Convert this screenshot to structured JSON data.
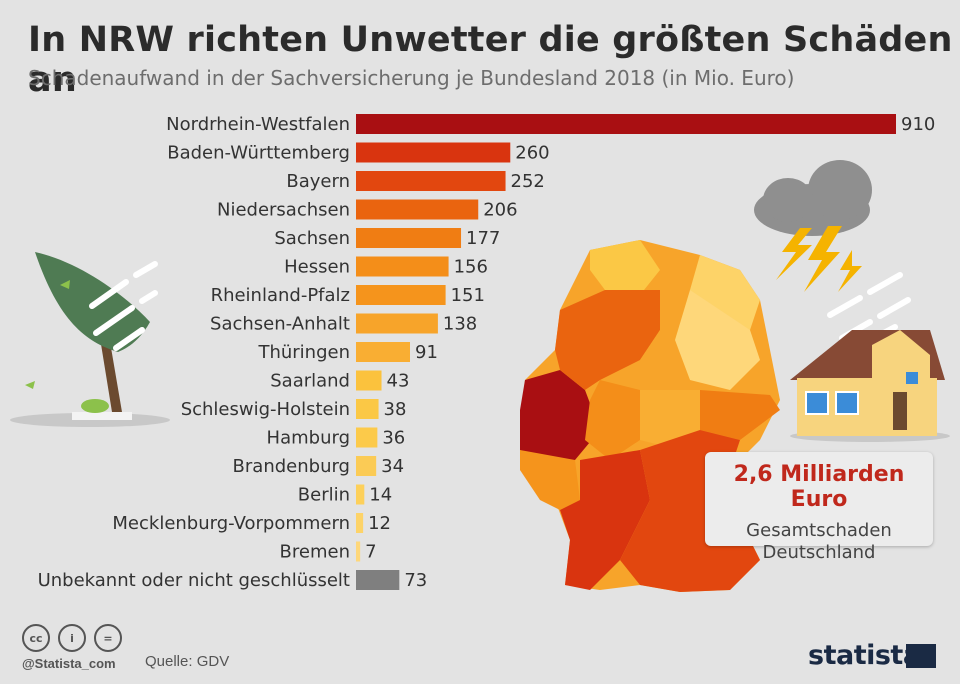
{
  "header": {
    "title": "In NRW richten Unwetter die größten Schäden an",
    "subtitle": "Schadenaufwand in der Sachversicherung je Bundesland 2018 (in Mio. Euro)"
  },
  "chart_data": {
    "type": "bar",
    "orientation": "horizontal",
    "title": "In NRW richten Unwetter die größten Schäden an",
    "subtitle": "Schadenaufwand in der Sachversicherung je Bundesland 2018 (in Mio. Euro)",
    "unit": "Mio. Euro",
    "categories": [
      "Nordrhein-Westfalen",
      "Baden-Württemberg",
      "Bayern",
      "Niedersachsen",
      "Sachsen",
      "Hessen",
      "Rheinland-Pfalz",
      "Sachsen-Anhalt",
      "Thüringen",
      "Saarland",
      "Schleswig-Holstein",
      "Hamburg",
      "Brandenburg",
      "Berlin",
      "Mecklenburg-Vorpommern",
      "Bremen",
      "Unbekannt oder nicht geschlüsselt"
    ],
    "values": [
      910,
      260,
      252,
      206,
      177,
      156,
      151,
      138,
      91,
      43,
      38,
      36,
      34,
      14,
      12,
      7,
      73
    ],
    "colors": [
      "#a90f12",
      "#d9340f",
      "#e2470f",
      "#ea640f",
      "#f07d13",
      "#f48e19",
      "#f5941c",
      "#f7a42a",
      "#f9ae33",
      "#fbc23d",
      "#fbc845",
      "#fcca4a",
      "#fbcb55",
      "#fdd05a",
      "#fdd368",
      "#fed77a",
      "#7f7f7f"
    ],
    "xlim": [
      0,
      910
    ]
  },
  "callout": {
    "value": "2,6 Milliarden Euro",
    "line1": "Gesamtschaden",
    "line2": "Deutschland"
  },
  "footer": {
    "cc_icons": [
      "cc",
      "i",
      "="
    ],
    "handle": "@Statista_com",
    "source": "Quelle: GDV",
    "logo": "statista"
  }
}
